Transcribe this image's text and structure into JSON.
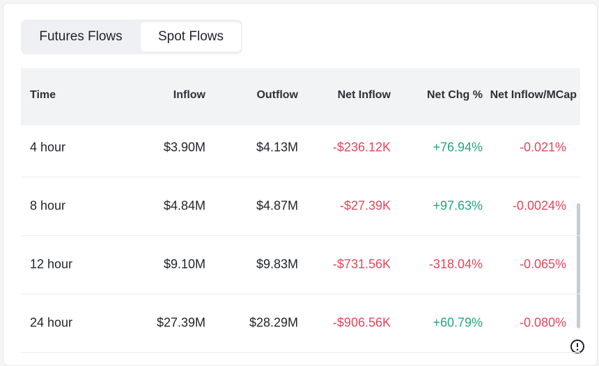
{
  "tabs": [
    "Futures Flows",
    "Spot Flows"
  ],
  "active_tab": 1,
  "table": {
    "columns": [
      "Time",
      "Inflow",
      "Outflow",
      "Net Inflow",
      "Net Chg %",
      "Net Inflow/MCap"
    ],
    "rows": [
      [
        "4 hour",
        "$3.90M",
        "$4.13M",
        "-$236.12K",
        "+76.94%",
        "-0.021%"
      ],
      [
        "8 hour",
        "$4.84M",
        "$4.87M",
        "-$27.39K",
        "+97.63%",
        "-0.0024%"
      ],
      [
        "12 hour",
        "$9.10M",
        "$9.83M",
        "-$731.56K",
        "-318.04%",
        "-0.065%"
      ],
      [
        "24 hour",
        "$27.39M",
        "$28.29M",
        "-$906.56K",
        "+60.79%",
        "-0.080%"
      ]
    ]
  }
}
